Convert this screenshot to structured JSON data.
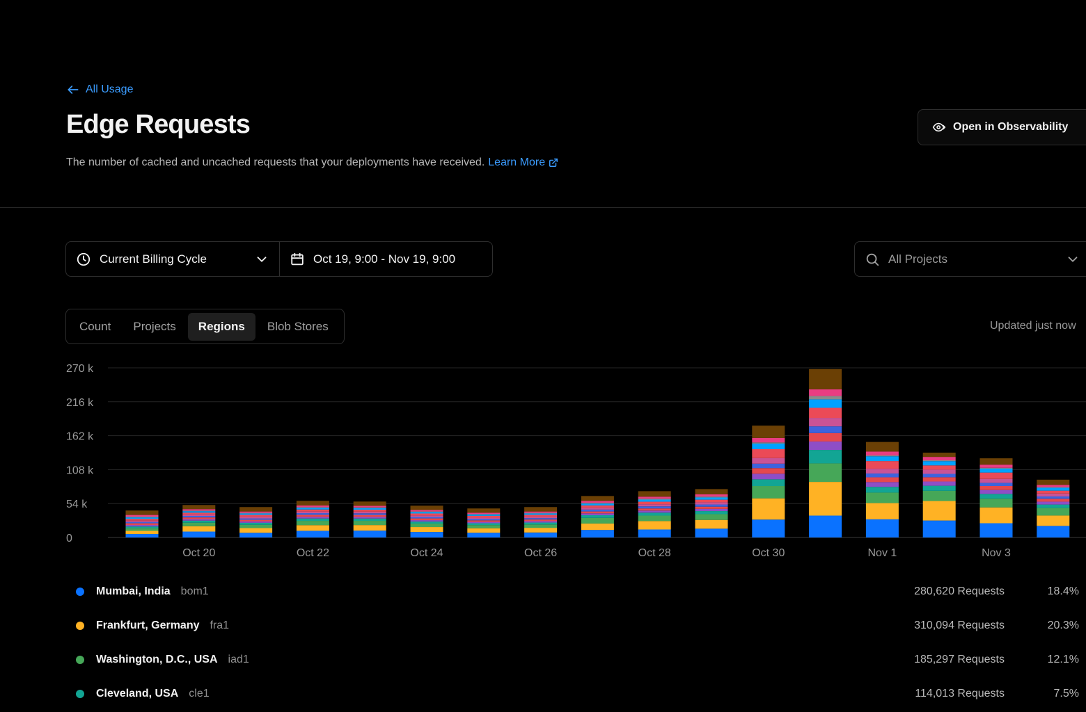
{
  "header": {
    "back_label": "All Usage",
    "title": "Edge Requests",
    "description": "The number of cached and uncached requests that your deployments have received.",
    "learn_more": "Learn More",
    "observability_button": "Open in Observability"
  },
  "filters": {
    "cycle": "Current Billing Cycle",
    "date_range": "Oct 19, 9:00 - Nov 19, 9:00",
    "projects": "All Projects"
  },
  "tabs": [
    {
      "label": "Count",
      "active": false
    },
    {
      "label": "Projects",
      "active": false
    },
    {
      "label": "Regions",
      "active": true
    },
    {
      "label": "Blob Stores",
      "active": false
    }
  ],
  "updated_text": "Updated just now",
  "chart_data": {
    "type": "bar",
    "stacked": true,
    "y_ticks": [
      "0",
      "54 k",
      "108 k",
      "162 k",
      "216 k",
      "270 k"
    ],
    "ylim": [
      0,
      270000
    ],
    "x_tick_labels": [
      "Oct 20",
      "Oct 22",
      "Oct 24",
      "Oct 26",
      "Oct 28",
      "Oct 30",
      "Nov 1",
      "Nov 3"
    ],
    "categories": [
      "Oct 19",
      "Oct 20",
      "Oct 21",
      "Oct 22",
      "Oct 23",
      "Oct 24",
      "Oct 25",
      "Oct 26",
      "Oct 27",
      "Oct 28",
      "Oct 29",
      "Oct 30",
      "Oct 31",
      "Nov 1",
      "Nov 2",
      "Nov 3",
      "Nov 4"
    ],
    "totals": [
      39000,
      47000,
      44000,
      53000,
      52000,
      46000,
      42000,
      44000,
      60000,
      67000,
      70000,
      178000,
      268000,
      152000,
      135000,
      126000,
      92000
    ],
    "segment_colors": [
      "#0a72ff",
      "#ffb224",
      "#46a758",
      "#12a594",
      "#8e4ec6",
      "#e5484d",
      "#3e63dd",
      "#ca5395",
      "#eb4a57",
      "#00a2ff",
      "#8b8b8b",
      "#e93d82",
      "#6b4005"
    ],
    "segment_fractions": [
      [
        0.14,
        0.13,
        0.11,
        0.07,
        0.06,
        0.07,
        0.05,
        0.06,
        0.07,
        0.06,
        0.03,
        0.07,
        0.18
      ],
      [
        0.2,
        0.18,
        0.12,
        0.07,
        0.05,
        0.06,
        0.05,
        0.05,
        0.06,
        0.05,
        0.02,
        0.05,
        0.14
      ],
      [
        0.17,
        0.17,
        0.12,
        0.07,
        0.05,
        0.06,
        0.05,
        0.06,
        0.07,
        0.05,
        0.02,
        0.05,
        0.16
      ],
      [
        0.2,
        0.17,
        0.13,
        0.07,
        0.05,
        0.06,
        0.05,
        0.05,
        0.06,
        0.05,
        0.02,
        0.05,
        0.14
      ],
      [
        0.21,
        0.17,
        0.13,
        0.07,
        0.05,
        0.06,
        0.05,
        0.05,
        0.06,
        0.05,
        0.02,
        0.05,
        0.13
      ],
      [
        0.19,
        0.17,
        0.12,
        0.07,
        0.05,
        0.06,
        0.05,
        0.05,
        0.07,
        0.05,
        0.02,
        0.05,
        0.15
      ],
      [
        0.18,
        0.17,
        0.12,
        0.07,
        0.05,
        0.06,
        0.05,
        0.05,
        0.07,
        0.05,
        0.02,
        0.05,
        0.16
      ],
      [
        0.18,
        0.17,
        0.12,
        0.07,
        0.05,
        0.06,
        0.05,
        0.05,
        0.07,
        0.05,
        0.02,
        0.05,
        0.16
      ],
      [
        0.2,
        0.17,
        0.15,
        0.07,
        0.05,
        0.05,
        0.05,
        0.05,
        0.06,
        0.05,
        0.02,
        0.05,
        0.13
      ],
      [
        0.19,
        0.2,
        0.13,
        0.07,
        0.05,
        0.05,
        0.05,
        0.05,
        0.06,
        0.05,
        0.02,
        0.05,
        0.13
      ],
      [
        0.2,
        0.2,
        0.13,
        0.07,
        0.05,
        0.05,
        0.05,
        0.05,
        0.06,
        0.05,
        0.02,
        0.05,
        0.12
      ],
      [
        0.16,
        0.19,
        0.11,
        0.06,
        0.05,
        0.05,
        0.04,
        0.05,
        0.08,
        0.05,
        0.01,
        0.04,
        0.11
      ],
      [
        0.13,
        0.2,
        0.11,
        0.08,
        0.05,
        0.05,
        0.04,
        0.05,
        0.06,
        0.05,
        0.02,
        0.04,
        0.12
      ],
      [
        0.19,
        0.17,
        0.11,
        0.06,
        0.05,
        0.05,
        0.04,
        0.05,
        0.08,
        0.05,
        0.01,
        0.04,
        0.1
      ],
      [
        0.2,
        0.23,
        0.12,
        0.06,
        0.05,
        0.05,
        0.04,
        0.05,
        0.05,
        0.05,
        0.01,
        0.04,
        0.05
      ],
      [
        0.18,
        0.2,
        0.11,
        0.06,
        0.05,
        0.05,
        0.04,
        0.05,
        0.08,
        0.05,
        0.01,
        0.04,
        0.08
      ],
      [
        0.2,
        0.18,
        0.13,
        0.06,
        0.05,
        0.05,
        0.04,
        0.05,
        0.05,
        0.05,
        0.01,
        0.04,
        0.09
      ]
    ]
  },
  "legend": [
    {
      "name": "Mumbai, India",
      "code": "bom1",
      "requests": "280,620 Requests",
      "percent": "18.4%",
      "color": "#0a72ff"
    },
    {
      "name": "Frankfurt, Germany",
      "code": "fra1",
      "requests": "310,094 Requests",
      "percent": "20.3%",
      "color": "#ffb224"
    },
    {
      "name": "Washington, D.C., USA",
      "code": "iad1",
      "requests": "185,297 Requests",
      "percent": "12.1%",
      "color": "#46a758"
    },
    {
      "name": "Cleveland, USA",
      "code": "cle1",
      "requests": "114,013 Requests",
      "percent": "7.5%",
      "color": "#12a594"
    }
  ]
}
